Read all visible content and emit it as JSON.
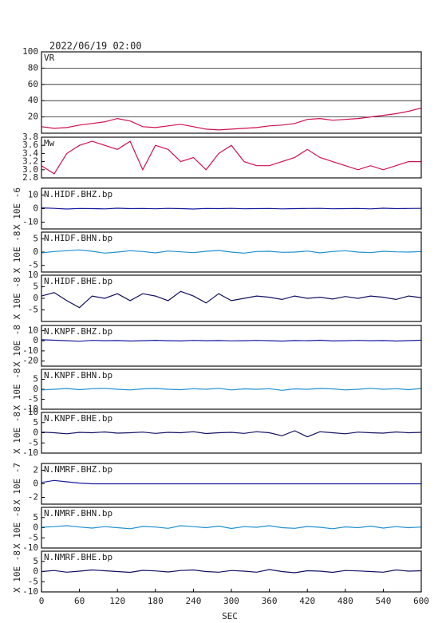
{
  "chart_data": [
    {
      "type": "line",
      "title": "2022/06/19 02:00",
      "xlim": [
        0,
        600
      ],
      "ylim": [
        0,
        100
      ],
      "yticks": [
        20,
        40,
        60,
        80,
        100
      ],
      "grid": true,
      "x": [
        0,
        20,
        40,
        60,
        80,
        100,
        120,
        140,
        160,
        180,
        200,
        220,
        240,
        260,
        280,
        300,
        320,
        340,
        360,
        380,
        400,
        420,
        440,
        460,
        480,
        500,
        520,
        540,
        560,
        580,
        600
      ],
      "series": [
        {
          "name": "VR",
          "color": "#d0104c",
          "values": [
            8,
            6,
            7,
            10,
            12,
            14,
            18,
            15,
            8,
            7,
            9,
            11,
            8,
            5,
            4,
            5,
            6,
            7,
            9,
            10,
            12,
            17,
            18,
            16,
            17,
            18,
            20,
            22,
            24,
            27,
            31
          ]
        }
      ]
    },
    {
      "type": "line",
      "xlim": [
        0,
        600
      ],
      "ylim": [
        2.8,
        3.8
      ],
      "yticks": [
        2.8,
        {
          "value": 3,
          "label": "3.0"
        },
        3.2,
        3.4,
        3.6,
        3.8
      ],
      "x": [
        0,
        20,
        40,
        60,
        80,
        100,
        120,
        140,
        160,
        180,
        200,
        220,
        240,
        260,
        280,
        300,
        320,
        340,
        360,
        380,
        400,
        420,
        440,
        460,
        480,
        500,
        520,
        540,
        560,
        580,
        600
      ],
      "series": [
        {
          "name": "Mw",
          "color": "#d0104c",
          "values": [
            3.1,
            2.9,
            3.4,
            3.6,
            3.7,
            3.6,
            3.5,
            3.7,
            3.0,
            3.6,
            3.5,
            3.2,
            3.3,
            3.0,
            3.4,
            3.6,
            3.2,
            3.1,
            3.1,
            3.2,
            3.3,
            3.5,
            3.3,
            3.2,
            3.1,
            3.0,
            3.1,
            3.0,
            3.1,
            3.2,
            3.2
          ]
        }
      ]
    },
    {
      "type": "line",
      "ylabel": "X 10E -6",
      "xlim": [
        0,
        600
      ],
      "ylim": [
        -15,
        15
      ],
      "yticks": [
        -10,
        0,
        10
      ],
      "x": [
        0,
        20,
        40,
        60,
        80,
        100,
        120,
        140,
        160,
        180,
        200,
        220,
        240,
        260,
        280,
        300,
        320,
        340,
        360,
        380,
        400,
        420,
        440,
        460,
        480,
        500,
        520,
        540,
        560,
        580,
        600
      ],
      "series": [
        {
          "name": "N.HIDF.BHZ.bp",
          "color": "#1a1aa0",
          "values": [
            0.5,
            0.2,
            -0.3,
            0.1,
            0,
            -0.2,
            0.3,
            0,
            0.1,
            -0.1,
            0.2,
            0,
            -0.3,
            0.1,
            0,
            0.2,
            -0.1,
            0,
            0.1,
            -0.2,
            0,
            0.1,
            0.2,
            -0.1,
            0,
            0.1,
            -0.2,
            0.3,
            0,
            0.1,
            0.2
          ]
        }
      ]
    },
    {
      "type": "line",
      "ylabel": "X 10E -8",
      "xlim": [
        0,
        600
      ],
      "ylim": [
        -7.5,
        7.5
      ],
      "yticks": [
        -5,
        0,
        5
      ],
      "x": [
        0,
        20,
        40,
        60,
        80,
        100,
        120,
        140,
        160,
        180,
        200,
        220,
        240,
        260,
        280,
        300,
        320,
        340,
        360,
        380,
        400,
        420,
        440,
        460,
        480,
        500,
        520,
        540,
        560,
        580,
        600
      ],
      "series": [
        {
          "name": "N.HIDF.BHN.bp",
          "color": "#2090d0",
          "values": [
            -0.3,
            0.2,
            0.5,
            0.8,
            0.3,
            -0.4,
            0,
            0.5,
            0.2,
            -0.3,
            0.4,
            0.1,
            -0.2,
            0.3,
            0.6,
            0,
            -0.4,
            0.2,
            0.3,
            -0.1,
            0,
            0.4,
            -0.3,
            0.2,
            0.5,
            0,
            -0.2,
            0.3,
            0.1,
            0,
            0.2
          ]
        }
      ]
    },
    {
      "type": "line",
      "ylabel": "X 10E -8",
      "xlim": [
        0,
        600
      ],
      "ylim": [
        -10,
        10
      ],
      "yticks": [
        -5,
        0,
        5,
        10
      ],
      "x": [
        0,
        20,
        40,
        60,
        80,
        100,
        120,
        140,
        160,
        180,
        200,
        220,
        240,
        260,
        280,
        300,
        320,
        340,
        360,
        380,
        400,
        420,
        440,
        460,
        480,
        500,
        520,
        540,
        560,
        580,
        600
      ],
      "series": [
        {
          "name": "N.HIDF.BHE.bp",
          "color": "#101060",
          "values": [
            1,
            2.5,
            -1,
            -4,
            1,
            0,
            2,
            -1,
            2,
            1,
            -1,
            3,
            1,
            -2,
            2,
            -1,
            0,
            1,
            0.5,
            -0.5,
            1,
            0,
            0.5,
            -0.3,
            0.8,
            0,
            1,
            0.5,
            -0.5,
            1,
            0.3
          ]
        }
      ]
    },
    {
      "type": "line",
      "ylabel": "X 10E -8",
      "xlim": [
        0,
        600
      ],
      "ylim": [
        -25,
        15
      ],
      "yticks": [
        -20,
        -10,
        0,
        10
      ],
      "x": [
        0,
        20,
        40,
        60,
        80,
        100,
        120,
        140,
        160,
        180,
        200,
        220,
        240,
        260,
        280,
        300,
        320,
        340,
        360,
        380,
        400,
        420,
        440,
        460,
        480,
        500,
        520,
        540,
        560,
        580,
        600
      ],
      "series": [
        {
          "name": "N.KNPF.BHZ.bp",
          "color": "#1a1aa0",
          "values": [
            1,
            0.5,
            0,
            -0.5,
            0.3,
            0,
            0.2,
            -0.3,
            0,
            0.4,
            0,
            -0.2,
            0.3,
            0,
            0.2,
            -0.1,
            0,
            0.3,
            0,
            -0.4,
            0.2,
            0,
            0.5,
            -0.2,
            0,
            0.3,
            0,
            0.2,
            -0.3,
            0.1,
            0.5
          ]
        }
      ]
    },
    {
      "type": "line",
      "ylabel": "X 10E -8",
      "xlim": [
        0,
        600
      ],
      "ylim": [
        -10,
        10
      ],
      "yticks": [
        -10,
        -5,
        0,
        5
      ],
      "x": [
        0,
        20,
        40,
        60,
        80,
        100,
        120,
        140,
        160,
        180,
        200,
        220,
        240,
        260,
        280,
        300,
        320,
        340,
        360,
        380,
        400,
        420,
        440,
        460,
        480,
        500,
        520,
        540,
        560,
        580,
        600
      ],
      "series": [
        {
          "name": "N.KNPF.BHN.bp",
          "color": "#2090d0",
          "values": [
            -0.3,
            0,
            0.4,
            -0.2,
            0.3,
            0.5,
            0,
            -0.3,
            0.2,
            0.4,
            0,
            -0.2,
            0.3,
            0,
            0.5,
            -0.3,
            0.2,
            0,
            0.3,
            -0.5,
            0.2,
            0,
            0.4,
            0.2,
            -0.3,
            0,
            0.5,
            0,
            0.3,
            -0.2,
            0.4
          ]
        }
      ]
    },
    {
      "type": "line",
      "ylabel": "X 10E -8",
      "xlim": [
        0,
        600
      ],
      "ylim": [
        -10,
        10
      ],
      "yticks": [
        -10,
        -5,
        0,
        5,
        10
      ],
      "x": [
        0,
        20,
        40,
        60,
        80,
        100,
        120,
        140,
        160,
        180,
        200,
        220,
        240,
        260,
        280,
        300,
        320,
        340,
        360,
        380,
        400,
        420,
        440,
        460,
        480,
        500,
        520,
        540,
        560,
        580,
        600
      ],
      "series": [
        {
          "name": "N.KNPF.BHE.bp",
          "color": "#101060",
          "values": [
            0.3,
            0,
            -0.5,
            0.2,
            0,
            0.4,
            -0.2,
            0,
            0.3,
            -0.3,
            0.2,
            0,
            0.5,
            -0.4,
            0,
            0.2,
            -0.3,
            0.5,
            0,
            -1.5,
            1,
            -2,
            0.5,
            0,
            -0.5,
            0.3,
            0,
            -0.2,
            0.4,
            0,
            0.2
          ]
        }
      ]
    },
    {
      "type": "line",
      "ylabel": "X 10E -7",
      "xlim": [
        0,
        600
      ],
      "ylim": [
        -3,
        3
      ],
      "yticks": [
        -2,
        0,
        2
      ],
      "x": [
        0,
        20,
        40,
        60,
        80,
        100,
        120,
        140,
        160,
        180,
        200,
        220,
        240,
        260,
        280,
        300,
        320,
        340,
        360,
        380,
        400,
        420,
        440,
        460,
        480,
        500,
        520,
        540,
        560,
        580,
        600
      ],
      "series": [
        {
          "name": "N.NMRF.BHZ.bp",
          "color": "#1a1aa0",
          "values": [
            0.2,
            0.5,
            0.3,
            0.1,
            0,
            0,
            0,
            0,
            0,
            0,
            0,
            0,
            0,
            0,
            0,
            0,
            0,
            0,
            0,
            0,
            0,
            0,
            0,
            0,
            0,
            0,
            0,
            0,
            0,
            0,
            0
          ]
        }
      ]
    },
    {
      "type": "line",
      "ylabel": "X 10E -8",
      "xlim": [
        0,
        600
      ],
      "ylim": [
        -10,
        10
      ],
      "yticks": [
        -10,
        -5,
        0,
        5
      ],
      "x": [
        0,
        20,
        40,
        60,
        80,
        100,
        120,
        140,
        160,
        180,
        200,
        220,
        240,
        260,
        280,
        300,
        320,
        340,
        360,
        380,
        400,
        420,
        440,
        460,
        480,
        500,
        520,
        540,
        560,
        580,
        600
      ],
      "series": [
        {
          "name": "N.NMRF.BHN.bp",
          "color": "#2090d0",
          "values": [
            0.2,
            0.5,
            1,
            0.3,
            -0.2,
            0.5,
            0,
            -0.5,
            0.6,
            0.3,
            -0.3,
            1,
            0.5,
            0,
            0.8,
            -0.4,
            0.5,
            0.2,
            1,
            0,
            -0.3,
            0.6,
            0.2,
            -0.5,
            0.4,
            0,
            0.8,
            -0.2,
            0.5,
            0,
            0.3
          ]
        }
      ]
    },
    {
      "type": "line",
      "ylabel": "X 10E -8",
      "xlabel": "SEC",
      "xlim": [
        0,
        600
      ],
      "xticks": [
        0,
        60,
        120,
        180,
        240,
        300,
        360,
        420,
        480,
        540,
        600
      ],
      "ylim": [
        -10,
        10
      ],
      "yticks": [
        -10,
        -5,
        0,
        5
      ],
      "x": [
        0,
        20,
        40,
        60,
        80,
        100,
        120,
        140,
        160,
        180,
        200,
        220,
        240,
        260,
        280,
        300,
        320,
        340,
        360,
        380,
        400,
        420,
        440,
        460,
        480,
        500,
        520,
        540,
        560,
        580,
        600
      ],
      "series": [
        {
          "name": "N.NMRF.BHE.bp",
          "color": "#101060",
          "values": [
            0,
            0.5,
            -0.3,
            0.2,
            0.8,
            0.4,
            0,
            -0.4,
            0.6,
            0.3,
            -0.2,
            0.5,
            0.8,
            0,
            -0.3,
            0.5,
            0.2,
            -0.3,
            1,
            0,
            -0.6,
            0.4,
            0.2,
            -0.4,
            0.5,
            0.3,
            0,
            -0.3,
            0.8,
            0.2,
            0.4
          ]
        }
      ]
    }
  ]
}
